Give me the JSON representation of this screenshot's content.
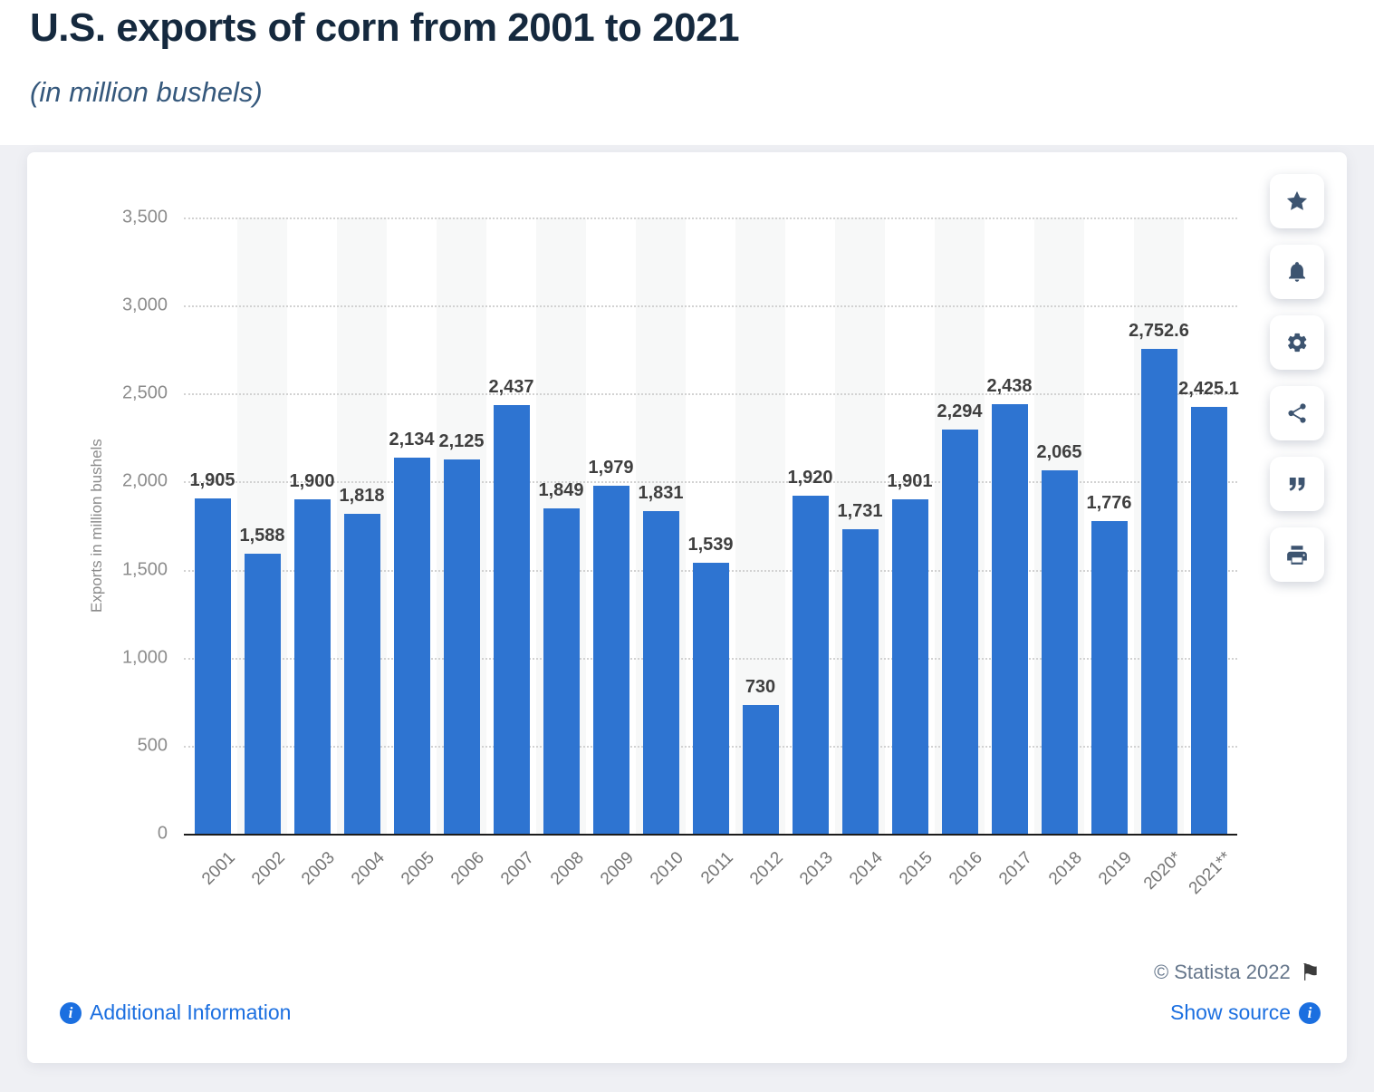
{
  "header": {
    "title": "U.S. exports of corn from 2001 to 2021",
    "subtitle": "(in million bushels)"
  },
  "chart_data": {
    "type": "bar",
    "title": "U.S. exports of corn from 2001 to 2021",
    "subtitle": "(in million bushels)",
    "categories": [
      "2001",
      "2002",
      "2003",
      "2004",
      "2005",
      "2006",
      "2007",
      "2008",
      "2009",
      "2010",
      "2011",
      "2012",
      "2013",
      "2014",
      "2015",
      "2016",
      "2017",
      "2018",
      "2019",
      "2020*",
      "2021**"
    ],
    "values": [
      1905,
      1588,
      1900,
      1818,
      2134,
      2125,
      2437,
      1849,
      1979,
      1831,
      1539,
      730,
      1920,
      1731,
      1901,
      2294,
      2438,
      2065,
      1776,
      2752.6,
      2425.1
    ],
    "value_labels": [
      "1,905",
      "1,588",
      "1,900",
      "1,818",
      "2,134",
      "2,125",
      "2,437",
      "1,849",
      "1,979",
      "1,831",
      "1,539",
      "730",
      "1,920",
      "1,731",
      "1,901",
      "2,294",
      "2,438",
      "2,065",
      "1,776",
      "2,752.6",
      "2,425.1"
    ],
    "xlabel": "",
    "ylabel": "Exports in million bushels",
    "ylim": [
      0,
      3500
    ],
    "ytick_interval": 500,
    "ytick_labels": [
      "0",
      "500",
      "1,000",
      "1,500",
      "2,000",
      "2,500",
      "3,000",
      "3,500"
    ],
    "grid": "horizontal-dotted",
    "legend": "none",
    "bar_color": "#2e74d1",
    "band_color": "#f7f8f8"
  },
  "toolbar": {
    "buttons": [
      {
        "label": "favorite",
        "icon": "star-icon"
      },
      {
        "label": "alerts",
        "icon": "bell-icon"
      },
      {
        "label": "settings",
        "icon": "gear-icon"
      },
      {
        "label": "share",
        "icon": "share-icon"
      },
      {
        "label": "cite",
        "icon": "quote-icon"
      },
      {
        "label": "print",
        "icon": "printer-icon"
      }
    ]
  },
  "footer": {
    "copyright": "© Statista 2022",
    "additional_info_label": "Additional Information",
    "show_source_label": "Show source"
  },
  "colors": {
    "bar": "#2e74d1",
    "link": "#1b6fe0",
    "title": "#15293e",
    "subtitle": "#35587c"
  }
}
